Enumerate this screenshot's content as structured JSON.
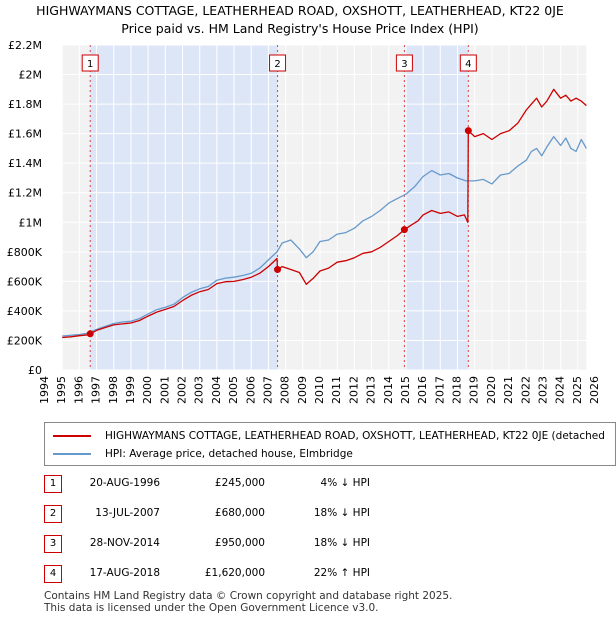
{
  "chart_data": {
    "type": "line",
    "title": "HIGHWAYMANS COTTAGE, LEATHERHEAD ROAD, OXSHOTT, LEATHERHEAD, KT22 0JE",
    "subtitle": "Price paid vs. HM Land Registry's House Price Index (HPI)",
    "xlim": [
      1994,
      2026
    ],
    "ylim": [
      0,
      2200000
    ],
    "x_ticks": [
      "1994",
      "1995",
      "1996",
      "1997",
      "1998",
      "1999",
      "2000",
      "2001",
      "2002",
      "2003",
      "2004",
      "2005",
      "2006",
      "2007",
      "2008",
      "2009",
      "2010",
      "2011",
      "2012",
      "2013",
      "2014",
      "2015",
      "2016",
      "2017",
      "2018",
      "2019",
      "2020",
      "2021",
      "2022",
      "2023",
      "2024",
      "2025",
      "2026"
    ],
    "y_ticks": [
      {
        "value": 0,
        "label": "£0"
      },
      {
        "value": 200000,
        "label": "£200K"
      },
      {
        "value": 400000,
        "label": "£400K"
      },
      {
        "value": 600000,
        "label": "£600K"
      },
      {
        "value": 800000,
        "label": "£800K"
      },
      {
        "value": 1000000,
        "label": "£1M"
      },
      {
        "value": 1200000,
        "label": "£1.2M"
      },
      {
        "value": 1400000,
        "label": "£1.4M"
      },
      {
        "value": 1600000,
        "label": "£1.6M"
      },
      {
        "value": 1800000,
        "label": "£1.8M"
      },
      {
        "value": 2000000,
        "label": "£2M"
      },
      {
        "value": 2200000,
        "label": "£2.2M"
      }
    ],
    "data_span": [
      1995.0,
      2025.5
    ],
    "shaded_periods": [
      [
        1996.63,
        2007.53
      ],
      [
        2014.91,
        2018.63
      ]
    ],
    "series": [
      {
        "name": "HIGHWAYMANS COTTAGE, LEATHERHEAD ROAD, OXSHOTT, LEATHERHEAD, KT22 0JE (detached",
        "color": "#cc0000",
        "x": [
          1995.0,
          1995.5,
          1996.0,
          1996.5,
          1996.63,
          1997.0,
          1997.5,
          1998.0,
          1998.5,
          1999.0,
          1999.5,
          2000.0,
          2000.5,
          2001.0,
          2001.5,
          2002.0,
          2002.5,
          2003.0,
          2003.5,
          2004.0,
          2004.5,
          2005.0,
          2005.5,
          2006.0,
          2006.5,
          2007.0,
          2007.5,
          2007.53,
          2007.8,
          2008.3,
          2008.8,
          2009.2,
          2009.6,
          2010.0,
          2010.5,
          2011.0,
          2011.5,
          2012.0,
          2012.5,
          2013.0,
          2013.5,
          2014.0,
          2014.5,
          2014.91,
          2015.3,
          2015.7,
          2016.0,
          2016.5,
          2017.0,
          2017.5,
          2018.0,
          2018.4,
          2018.6,
          2018.63,
          2019.0,
          2019.5,
          2020.0,
          2020.5,
          2021.0,
          2021.5,
          2022.0,
          2022.3,
          2022.6,
          2022.9,
          2023.2,
          2023.6,
          2024.0,
          2024.3,
          2024.6,
          2024.9,
          2025.2,
          2025.5
        ],
        "values": [
          220000,
          225000,
          232000,
          238000,
          245000,
          268000,
          288000,
          305000,
          312000,
          318000,
          335000,
          365000,
          392000,
          410000,
          430000,
          470000,
          505000,
          530000,
          545000,
          585000,
          598000,
          600000,
          612000,
          628000,
          655000,
          700000,
          755000,
          680000,
          700000,
          680000,
          660000,
          580000,
          620000,
          670000,
          690000,
          730000,
          740000,
          760000,
          790000,
          800000,
          830000,
          870000,
          910000,
          950000,
          980000,
          1010000,
          1050000,
          1080000,
          1060000,
          1070000,
          1040000,
          1050000,
          1000000,
          1620000,
          1580000,
          1600000,
          1560000,
          1600000,
          1620000,
          1670000,
          1760000,
          1800000,
          1840000,
          1780000,
          1820000,
          1900000,
          1840000,
          1860000,
          1820000,
          1840000,
          1820000,
          1790000
        ]
      },
      {
        "name": "HPI: Average price, detached house, Elmbridge",
        "color": "#6699cc",
        "x": [
          1995.0,
          1995.5,
          1996.0,
          1996.5,
          1997.0,
          1997.5,
          1998.0,
          1998.5,
          1999.0,
          1999.5,
          2000.0,
          2000.5,
          2001.0,
          2001.5,
          2002.0,
          2002.5,
          2003.0,
          2003.5,
          2004.0,
          2004.5,
          2005.0,
          2005.5,
          2006.0,
          2006.5,
          2007.0,
          2007.5,
          2007.8,
          2008.3,
          2008.8,
          2009.2,
          2009.6,
          2010.0,
          2010.5,
          2011.0,
          2011.5,
          2012.0,
          2012.5,
          2013.0,
          2013.5,
          2014.0,
          2014.5,
          2015.0,
          2015.5,
          2016.0,
          2016.5,
          2017.0,
          2017.5,
          2018.0,
          2018.5,
          2019.0,
          2019.5,
          2020.0,
          2020.5,
          2021.0,
          2021.5,
          2022.0,
          2022.3,
          2022.6,
          2022.9,
          2023.2,
          2023.6,
          2024.0,
          2024.3,
          2024.6,
          2024.9,
          2025.2,
          2025.5
        ],
        "values": [
          230000,
          235000,
          240000,
          250000,
          275000,
          295000,
          315000,
          325000,
          330000,
          348000,
          380000,
          408000,
          425000,
          445000,
          490000,
          525000,
          550000,
          565000,
          608000,
          622000,
          628000,
          640000,
          655000,
          690000,
          745000,
          800000,
          860000,
          880000,
          820000,
          760000,
          800000,
          870000,
          880000,
          920000,
          930000,
          960000,
          1010000,
          1040000,
          1080000,
          1130000,
          1160000,
          1190000,
          1240000,
          1310000,
          1350000,
          1320000,
          1330000,
          1300000,
          1280000,
          1280000,
          1290000,
          1260000,
          1320000,
          1330000,
          1380000,
          1420000,
          1480000,
          1500000,
          1450000,
          1510000,
          1580000,
          1520000,
          1570000,
          1500000,
          1480000,
          1560000,
          1500000
        ]
      }
    ],
    "sales": [
      {
        "num": "1",
        "x": 1996.63,
        "value": 245000
      },
      {
        "num": "2",
        "x": 2007.53,
        "value": 680000
      },
      {
        "num": "3",
        "x": 2014.91,
        "value": 950000
      },
      {
        "num": "4",
        "x": 2018.63,
        "value": 1620000
      }
    ]
  },
  "sales_table": [
    {
      "num": "1",
      "date": "20-AUG-1996",
      "price": "£245,000",
      "hpi": "4% ↓ HPI"
    },
    {
      "num": "2",
      "date": "13-JUL-2007",
      "price": "£680,000",
      "hpi": "18% ↓ HPI"
    },
    {
      "num": "3",
      "date": "28-NOV-2014",
      "price": "£950,000",
      "hpi": "18% ↓ HPI"
    },
    {
      "num": "4",
      "date": "17-AUG-2018",
      "price": "£1,620,000",
      "hpi": "22% ↑ HPI"
    }
  ],
  "footer": {
    "line1": "Contains HM Land Registry data © Crown copyright and database right 2025.",
    "line2": "This data is licensed under the Open Government Licence v3.0."
  }
}
